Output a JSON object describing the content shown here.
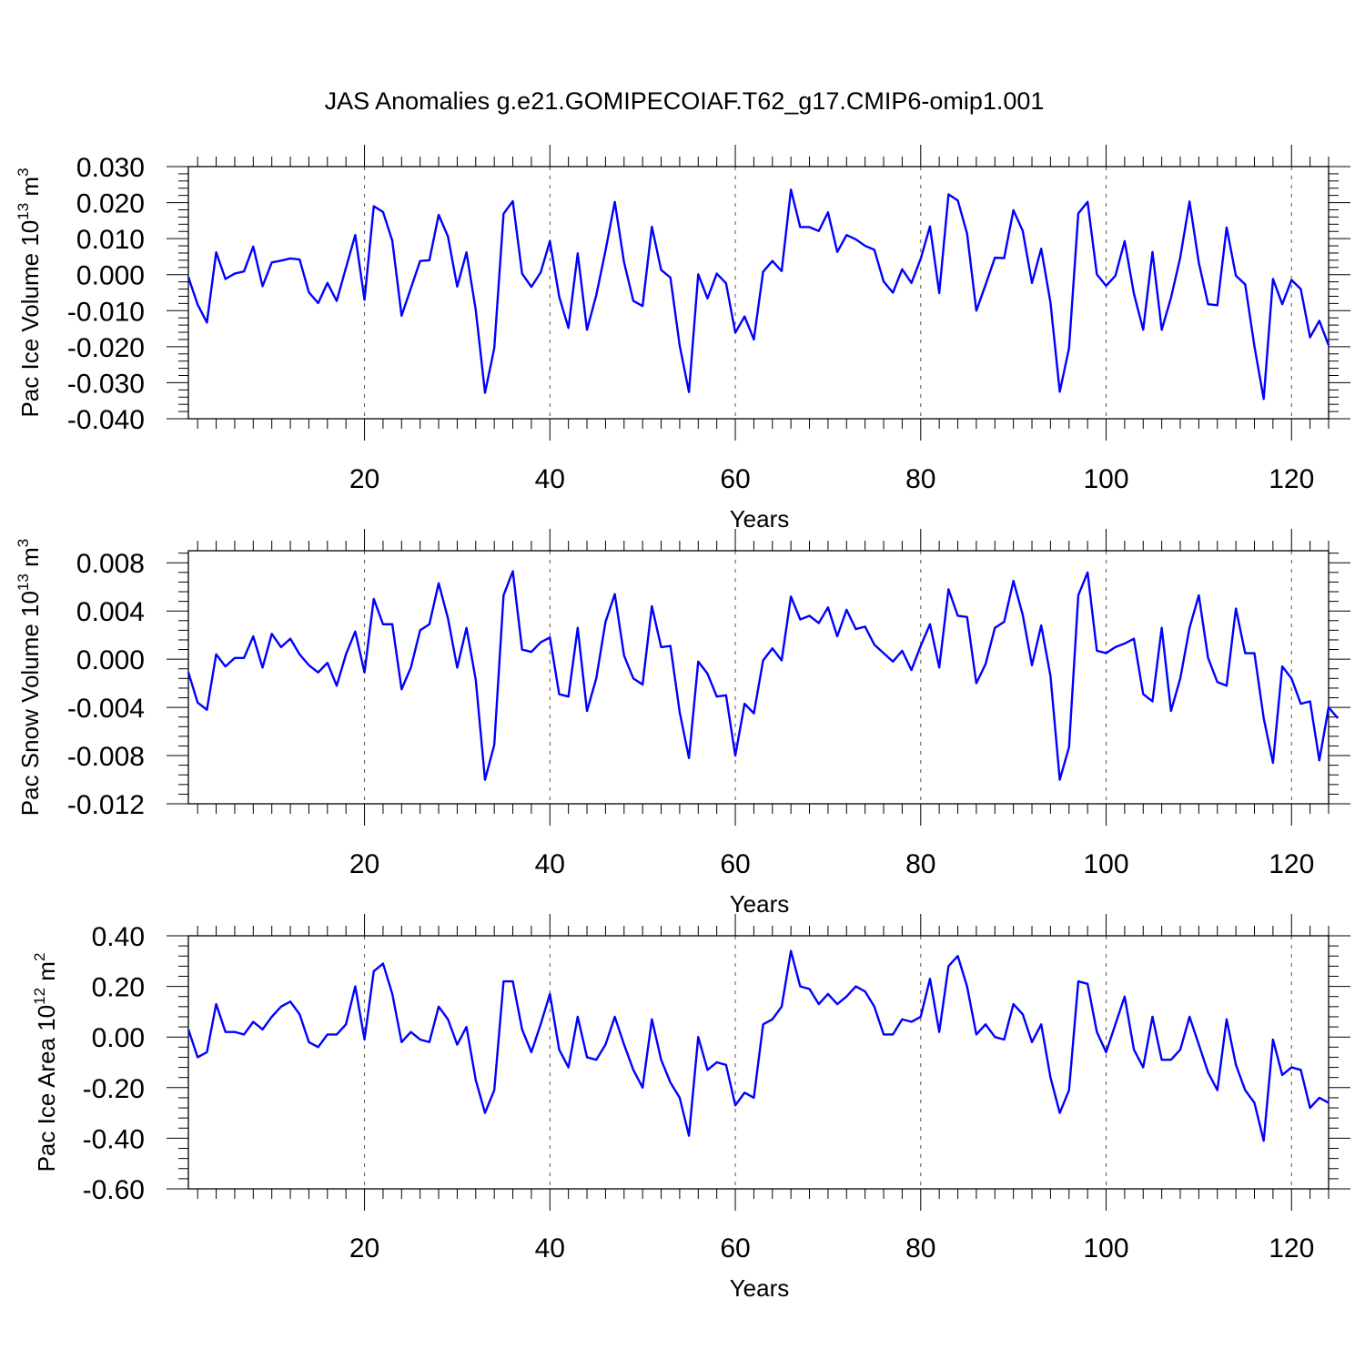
{
  "title": "JAS Anomalies g.e21.GOMIPECOIAF.T62_g17.CMIP6-omip1.001",
  "colors": {
    "line": "#0000ff",
    "axis": "#000000",
    "grid": "#555555"
  },
  "chart_data": [
    {
      "type": "line",
      "ylabel": "Pac Ice Volume 10",
      "ylabel_exp": "13",
      "ylabel_unit": " m",
      "ylabel_unit_exp": "3",
      "xlabel": "Years",
      "xlim": [
        1,
        124
      ],
      "ylim": [
        -0.04,
        0.03
      ],
      "x_ticks": [
        20,
        40,
        60,
        80,
        100,
        120
      ],
      "y_ticks": [
        "0.030",
        "0.020",
        "0.010",
        "0.000",
        "-0.010",
        "-0.020",
        "-0.030",
        "-0.040"
      ],
      "grid": "vertical dashed at major x ticks",
      "x_start": 1,
      "series": [
        {
          "values": [
            -0.0007,
            -0.0083,
            -0.0133,
            0.0062,
            -0.0012,
            0.0003,
            0.0009,
            0.0078,
            -0.0032,
            0.0034,
            0.0039,
            0.0045,
            0.0042,
            -0.0049,
            -0.0079,
            -0.0023,
            -0.0073,
            0.0019,
            0.011,
            -0.007,
            0.019,
            0.0174,
            0.0094,
            -0.0114,
            -0.0038,
            0.0038,
            0.004,
            0.0166,
            0.0106,
            -0.0033,
            0.0062,
            -0.0098,
            -0.0328,
            -0.0204,
            0.0169,
            0.0204,
            0.0003,
            -0.0034,
            0.0006,
            0.0093,
            -0.0061,
            -0.0148,
            0.0059,
            -0.0153,
            -0.0057,
            0.0067,
            0.0202,
            0.0034,
            -0.0073,
            -0.0087,
            0.0133,
            0.0013,
            -0.0008,
            -0.0197,
            -0.0326,
            0.0001,
            -0.0066,
            0.0003,
            -0.0024,
            -0.0161,
            -0.0116,
            -0.018,
            0.0008,
            0.0038,
            0.001,
            0.0236,
            0.0132,
            0.0132,
            0.0121,
            0.0173,
            0.0063,
            0.011,
            0.0098,
            0.008,
            0.0069,
            -0.0019,
            -0.005,
            0.0015,
            -0.0023,
            0.0044,
            0.0134,
            -0.0051,
            0.0223,
            0.0206,
            0.0114,
            -0.01,
            -0.0028,
            0.0047,
            0.0046,
            0.0179,
            0.0122,
            -0.0023,
            0.0072,
            -0.0078,
            -0.0325,
            -0.0204,
            0.017,
            0.0202,
            0.0001,
            -0.0031,
            -0.0003,
            0.0093,
            -0.0053,
            -0.0153,
            0.0063,
            -0.0153,
            -0.0064,
            0.0048,
            0.0203,
            0.0033,
            -0.0082,
            -0.0085,
            0.0131,
            -0.0003,
            -0.0027,
            -0.0199,
            -0.0345,
            -0.0012,
            -0.0082,
            -0.0015,
            -0.004,
            -0.0174,
            -0.0128,
            -0.0196
          ]
        }
      ]
    },
    {
      "type": "line",
      "ylabel": "Pac Snow Volume 10",
      "ylabel_exp": "13",
      "ylabel_unit": " m",
      "ylabel_unit_exp": "3",
      "xlabel": "Years",
      "xlim": [
        1,
        124
      ],
      "ylim": [
        -0.012,
        0.009
      ],
      "x_ticks": [
        20,
        40,
        60,
        80,
        100,
        120
      ],
      "y_ticks": [
        "0.008",
        "0.004",
        "0.000",
        "-0.004",
        "-0.008",
        "-0.012"
      ],
      "grid": "vertical dashed at major x ticks",
      "x_start": 1,
      "series": [
        {
          "values": [
            -0.0011,
            -0.0036,
            -0.0042,
            0.0004,
            -0.0006,
            0.0001,
            0.0001,
            0.0019,
            -0.0007,
            0.0021,
            0.001,
            0.0017,
            0.0004,
            -0.0005,
            -0.0011,
            -0.0003,
            -0.0022,
            0.0004,
            0.0023,
            -0.0011,
            0.005,
            0.0029,
            0.0029,
            -0.0025,
            -0.0007,
            0.0024,
            0.0029,
            0.0063,
            0.0034,
            -0.0007,
            0.0026,
            -0.0017,
            -0.01,
            -0.0071,
            0.0053,
            0.0073,
            0.0008,
            0.0006,
            0.0014,
            0.0018,
            -0.0029,
            -0.0031,
            0.0026,
            -0.0043,
            -0.0016,
            0.0031,
            0.0054,
            0.0003,
            -0.0016,
            -0.0021,
            0.0044,
            0.001,
            0.0011,
            -0.0044,
            -0.0082,
            -0.0002,
            -0.0012,
            -0.0031,
            -0.003,
            -0.008,
            -0.0037,
            -0.0045,
            -0.0001,
            0.0009,
            -0.0001,
            0.0052,
            0.0033,
            0.0036,
            0.003,
            0.0043,
            0.0019,
            0.0041,
            0.0025,
            0.0027,
            0.0012,
            0.0005,
            -0.0002,
            0.0007,
            -0.0009,
            0.0011,
            0.0029,
            -0.0007,
            0.0058,
            0.0036,
            0.0035,
            -0.002,
            -0.0004,
            0.0026,
            0.0031,
            0.0065,
            0.0037,
            -0.0005,
            0.0028,
            -0.0014,
            -0.01,
            -0.0073,
            0.0053,
            0.0072,
            0.0007,
            0.0005,
            0.001,
            0.0013,
            0.0017,
            -0.0029,
            -0.0035,
            0.0026,
            -0.0043,
            -0.0016,
            0.0026,
            0.0053,
            0.0001,
            -0.0019,
            -0.0022,
            0.0042,
            0.0005,
            0.0005,
            -0.0049,
            -0.0086,
            -0.0006,
            -0.0016,
            -0.0037,
            -0.0035,
            -0.0084,
            -0.004,
            -0.0049
          ]
        }
      ]
    },
    {
      "type": "line",
      "ylabel": "Pac Ice Area 10",
      "ylabel_exp": "12",
      "ylabel_unit": " m",
      "ylabel_unit_exp": "2",
      "xlabel": "Years",
      "xlim": [
        1,
        124
      ],
      "ylim": [
        -0.6,
        0.4
      ],
      "x_ticks": [
        20,
        40,
        60,
        80,
        100,
        120
      ],
      "y_ticks": [
        "0.40",
        "0.20",
        "0.00",
        "-0.20",
        "-0.40",
        "-0.60"
      ],
      "grid": "vertical dashed at major x ticks",
      "x_start": 1,
      "series": [
        {
          "values": [
            0.03,
            -0.08,
            -0.06,
            0.13,
            0.02,
            0.02,
            0.01,
            0.06,
            0.03,
            0.08,
            0.12,
            0.14,
            0.09,
            -0.02,
            -0.04,
            0.01,
            0.01,
            0.05,
            0.2,
            -0.01,
            0.26,
            0.29,
            0.17,
            -0.02,
            0.02,
            -0.01,
            -0.02,
            0.12,
            0.07,
            -0.03,
            0.04,
            -0.17,
            -0.3,
            -0.21,
            0.22,
            0.22,
            0.03,
            -0.06,
            0.05,
            0.17,
            -0.05,
            -0.12,
            0.08,
            -0.08,
            -0.09,
            -0.03,
            0.08,
            -0.03,
            -0.13,
            -0.2,
            0.07,
            -0.09,
            -0.18,
            -0.24,
            -0.39,
            0.0,
            -0.13,
            -0.1,
            -0.11,
            -0.27,
            -0.22,
            -0.24,
            0.05,
            0.07,
            0.12,
            0.34,
            0.2,
            0.19,
            0.13,
            0.17,
            0.13,
            0.16,
            0.2,
            0.18,
            0.12,
            0.01,
            0.01,
            0.07,
            0.06,
            0.08,
            0.23,
            0.02,
            0.28,
            0.32,
            0.2,
            0.01,
            0.05,
            0.0,
            -0.01,
            0.13,
            0.09,
            -0.02,
            0.05,
            -0.16,
            -0.3,
            -0.21,
            0.22,
            0.21,
            0.02,
            -0.06,
            0.05,
            0.16,
            -0.05,
            -0.12,
            0.08,
            -0.09,
            -0.09,
            -0.05,
            0.08,
            -0.03,
            -0.14,
            -0.21,
            0.07,
            -0.11,
            -0.21,
            -0.26,
            -0.41,
            -0.01,
            -0.15,
            -0.12,
            -0.13,
            -0.28,
            -0.24,
            -0.26
          ]
        }
      ]
    }
  ]
}
